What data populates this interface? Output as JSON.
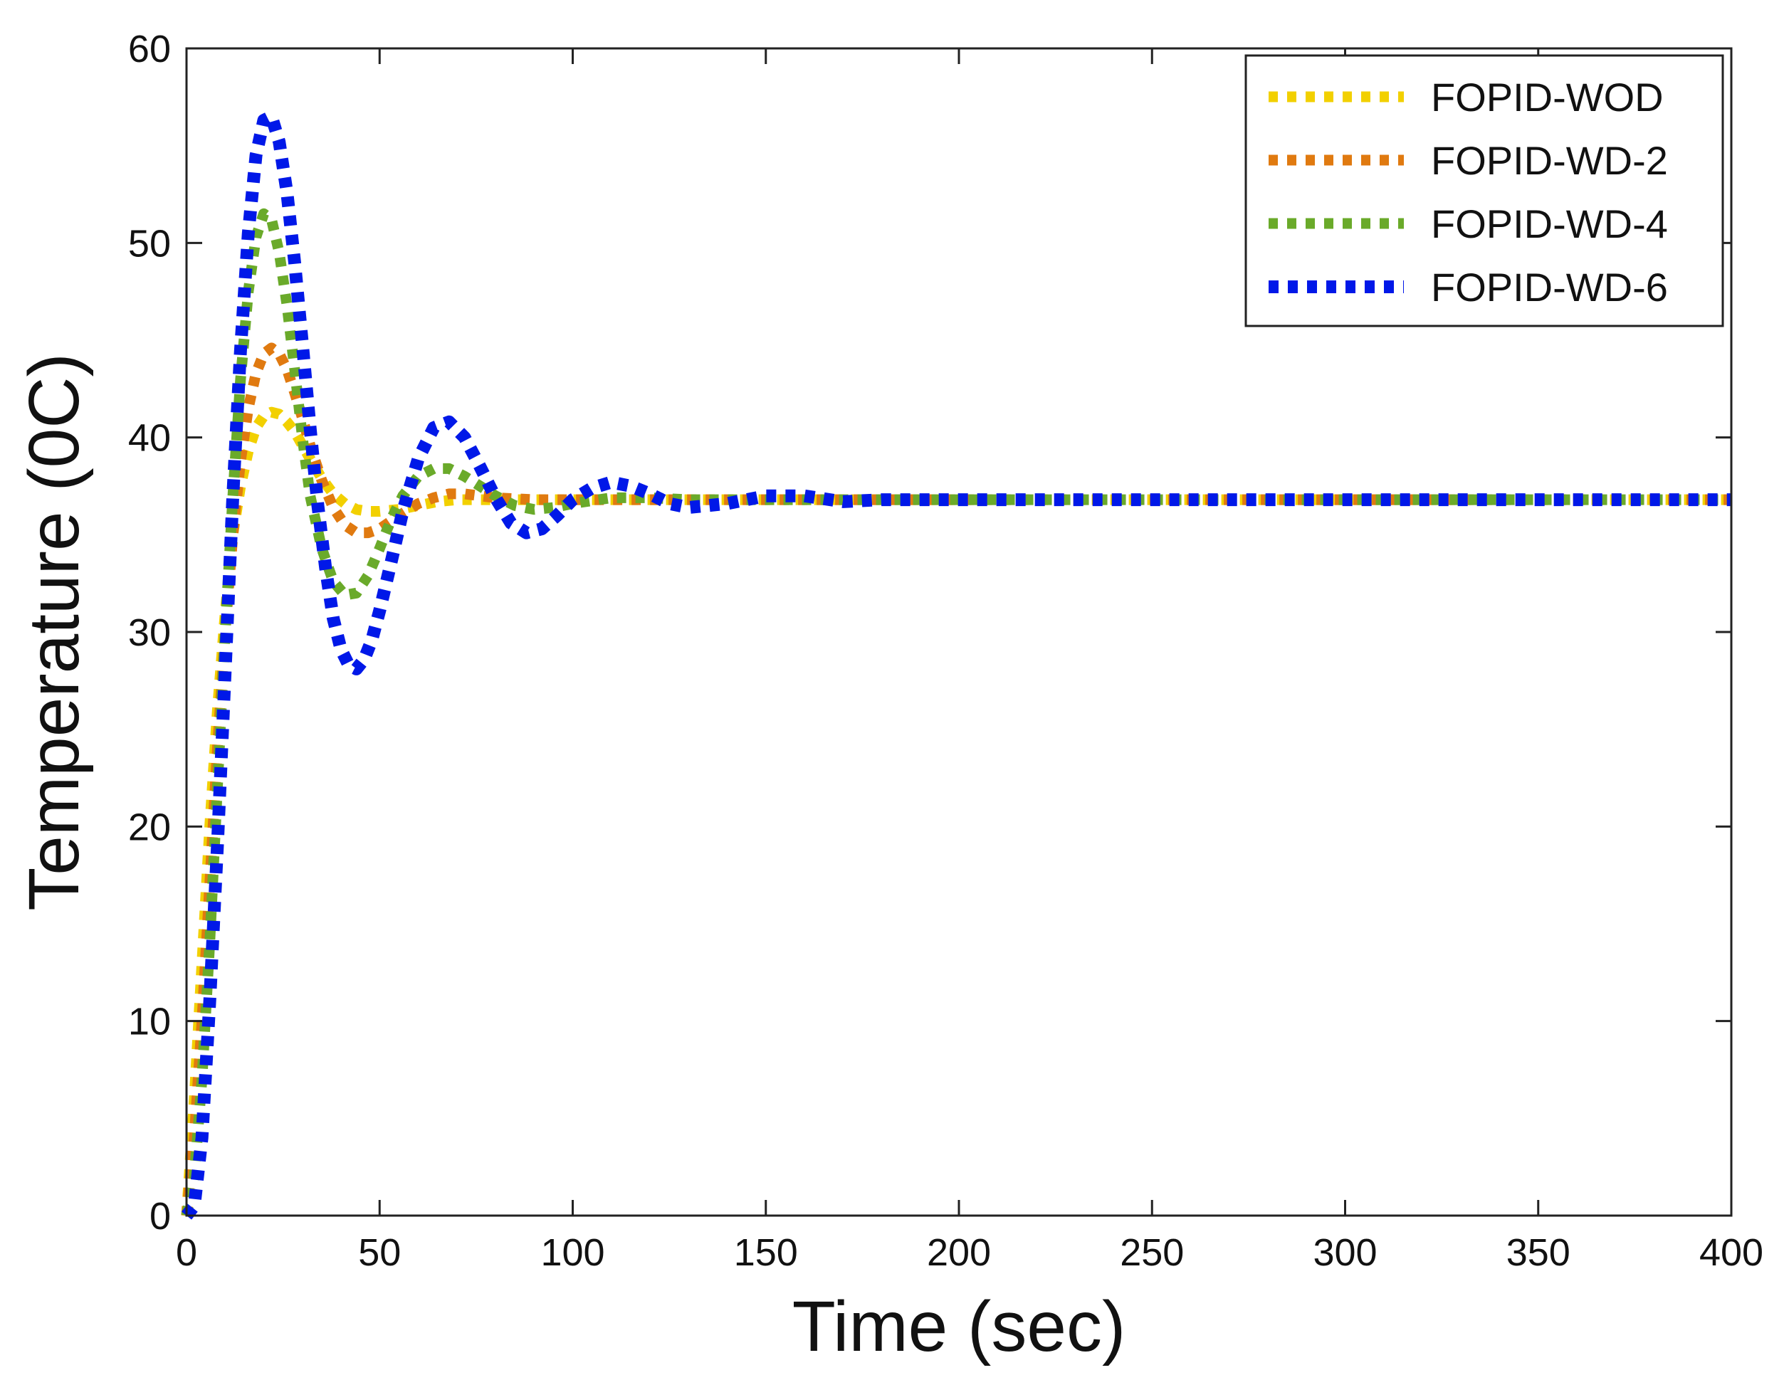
{
  "chart_data": {
    "type": "line",
    "title": "",
    "xlabel": "Time (sec)",
    "ylabel": "Temperature (0C)",
    "xlim": [
      0,
      400
    ],
    "ylim": [
      0,
      60
    ],
    "xticks": [
      0,
      50,
      100,
      150,
      200,
      250,
      300,
      350,
      400
    ],
    "yticks": [
      0,
      10,
      20,
      30,
      40,
      50,
      60
    ],
    "grid": false,
    "legend_position": "top-right",
    "line_style": "dotted",
    "series": [
      {
        "name": "FOPID-WOD",
        "color": "#f2d000",
        "x": [
          0,
          2,
          4,
          6,
          8,
          10,
          12,
          14,
          16,
          18,
          20,
          22,
          24,
          26,
          28,
          30,
          32,
          35,
          38,
          41,
          44,
          47,
          50,
          55,
          60,
          65,
          70,
          75,
          80,
          90,
          100,
          110,
          120,
          130,
          150,
          200,
          250,
          300,
          350,
          400
        ],
        "y": [
          0,
          6,
          13,
          20,
          26,
          31,
          35,
          37.5,
          39.3,
          40.5,
          41.1,
          41.3,
          41.2,
          40.8,
          40.3,
          39.6,
          38.9,
          37.9,
          37.1,
          36.6,
          36.3,
          36.2,
          36.2,
          36.3,
          36.5,
          36.7,
          36.8,
          36.8,
          36.8,
          36.8,
          36.8,
          36.8,
          36.8,
          36.8,
          36.8,
          36.8,
          36.8,
          36.8,
          36.8,
          36.8
        ]
      },
      {
        "name": "FOPID-WD-2",
        "color": "#e07a10",
        "x": [
          0,
          2,
          4,
          6,
          8,
          10,
          12,
          14,
          16,
          18,
          20,
          22,
          24,
          26,
          28,
          30,
          32,
          35,
          38,
          41,
          44,
          47,
          50,
          53,
          56,
          60,
          64,
          68,
          72,
          76,
          80,
          90,
          100,
          110,
          120,
          130,
          150,
          200,
          250,
          300,
          350,
          400
        ],
        "y": [
          0,
          4,
          10,
          17,
          24,
          30,
          35,
          38.8,
          41.5,
          43.3,
          44.3,
          44.6,
          44.3,
          43.5,
          42.3,
          41,
          39.6,
          37.8,
          36.4,
          35.5,
          35.1,
          35.1,
          35.3,
          35.7,
          36.1,
          36.6,
          36.9,
          37.1,
          37.1,
          37,
          36.9,
          36.8,
          36.8,
          36.8,
          36.8,
          36.8,
          36.8,
          36.8,
          36.8,
          36.8,
          36.8,
          36.8
        ]
      },
      {
        "name": "FOPID-WD-4",
        "color": "#6aaa2a",
        "x": [
          0,
          2,
          4,
          6,
          8,
          10,
          12,
          14,
          16,
          18,
          20,
          22,
          24,
          26,
          28,
          30,
          32,
          35,
          38,
          41,
          44,
          47,
          50,
          53,
          56,
          60,
          64,
          68,
          72,
          76,
          80,
          85,
          90,
          95,
          100,
          110,
          120,
          130,
          150,
          200,
          250,
          300,
          350,
          400
        ],
        "y": [
          0,
          2,
          7,
          14,
          22,
          30,
          37,
          43,
          47.5,
          50.3,
          51.5,
          51.2,
          49.5,
          46.8,
          43.5,
          40,
          37,
          34.3,
          32.6,
          31.9,
          32,
          32.9,
          34.3,
          35.8,
          37,
          38,
          38.4,
          38.4,
          38,
          37.5,
          37,
          36.5,
          36.3,
          36.4,
          36.6,
          36.9,
          36.9,
          36.8,
          36.8,
          36.8,
          36.8,
          36.8,
          36.8,
          36.8
        ]
      },
      {
        "name": "FOPID-WD-6",
        "color": "#0018e8",
        "x": [
          0,
          2,
          4,
          6,
          8,
          10,
          12,
          14,
          16,
          18,
          20,
          22,
          24,
          26,
          28,
          30,
          32,
          34,
          36,
          38,
          40,
          42,
          44,
          46,
          48,
          50,
          53,
          56,
          60,
          64,
          68,
          72,
          76,
          80,
          84,
          88,
          92,
          96,
          100,
          105,
          110,
          115,
          120,
          125,
          130,
          140,
          150,
          160,
          170,
          180,
          200,
          250,
          300,
          350,
          400
        ],
        "y": [
          0,
          0.5,
          4,
          11,
          19,
          28,
          37,
          44.5,
          50.5,
          54.5,
          56.3,
          56.5,
          55.2,
          52.6,
          49,
          44.8,
          40.5,
          36.5,
          33.3,
          30.7,
          29.1,
          28.3,
          28.1,
          28.6,
          29.6,
          31.1,
          33.6,
          36.2,
          38.9,
          40.5,
          40.8,
          40,
          38.5,
          36.9,
          35.6,
          35.1,
          35.3,
          36,
          36.8,
          37.4,
          37.7,
          37.5,
          37.1,
          36.6,
          36.4,
          36.6,
          37,
          37,
          36.7,
          36.8,
          36.8,
          36.8,
          36.8,
          36.8,
          36.8
        ]
      }
    ]
  }
}
